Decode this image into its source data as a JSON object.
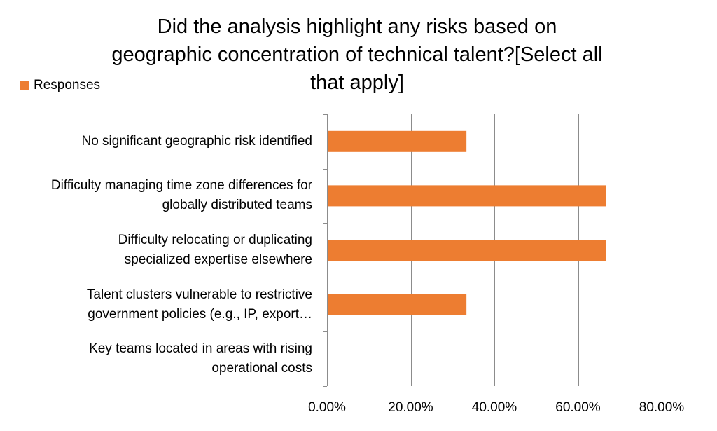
{
  "chart_data": {
    "type": "bar",
    "orientation": "horizontal",
    "title": "Did the analysis highlight any risks based on geographic concentration of technical talent?[Select all that apply]",
    "categories": [
      "No significant geographic risk identified",
      "Difficulty managing time zone differences for globally distributed teams",
      "Difficulty relocating or duplicating specialized expertise elsewhere",
      "Talent clusters vulnerable to restrictive government policies (e.g., IP, export…",
      "Key teams located in areas with rising operational costs"
    ],
    "category_lines": [
      [
        "No significant geographic risk identified"
      ],
      [
        "Difficulty managing time zone differences for",
        "globally distributed teams"
      ],
      [
        "Difficulty relocating or duplicating",
        "specialized expertise elsewhere"
      ],
      [
        "Talent clusters vulnerable to restrictive",
        "government policies (e.g., IP, export…"
      ],
      [
        "Key teams located in areas with rising",
        "operational costs"
      ]
    ],
    "series": [
      {
        "name": "Responses",
        "values": [
          33.33,
          66.67,
          66.67,
          33.33,
          0
        ]
      }
    ],
    "xlim": [
      0,
      80
    ],
    "xticks": [
      0,
      20,
      40,
      60,
      80
    ],
    "xtick_labels": [
      "0.00%",
      "20.00%",
      "40.00%",
      "60.00%",
      "80.00%"
    ],
    "xlabel": "",
    "ylabel": "",
    "grid": "vertical",
    "legend_position": "top-left",
    "colors": {
      "bar": "#ED7D31",
      "grid": "#8C8C8C",
      "axis": "#8C8C8C"
    }
  }
}
